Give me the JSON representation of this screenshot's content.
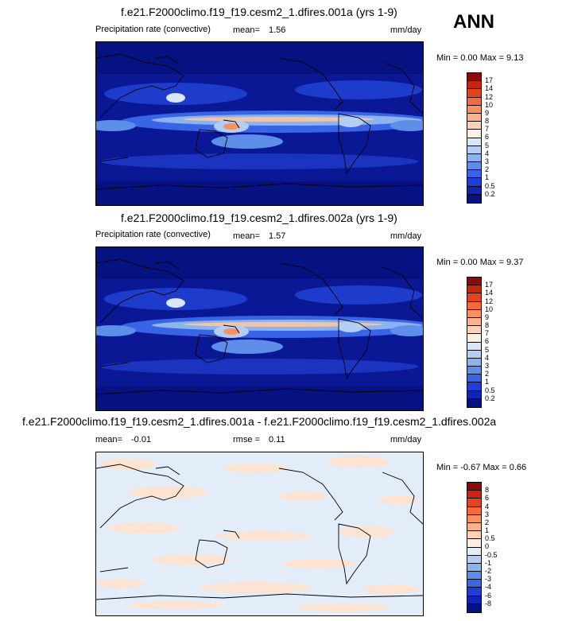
{
  "season": "ANN",
  "panels": [
    {
      "title": "f.e21.F2000climo.f19_f19.cesm2_1.dfires.001a (yrs 1-9)",
      "variable": "Precipitation rate (convective)",
      "stat_label": "mean=",
      "stat_value": "1.56",
      "units": "mm/day",
      "minmax": "Min =   0.00 Max =   9.13",
      "colorbar_labels": [
        "17",
        "14",
        "12",
        "10",
        "9",
        "8",
        "7",
        "6",
        "5",
        "4",
        "3",
        "2",
        "1",
        "0.5",
        "0.2"
      ],
      "colorbar_colors": [
        "#8b0a0a",
        "#c8250e",
        "#e4431f",
        "#f46a3c",
        "#f8915f",
        "#f9b289",
        "#fcd2b6",
        "#fdeee3",
        "#d9e6f8",
        "#b4cdf2",
        "#8db3ee",
        "#5d8fea",
        "#3a64e6",
        "#1f3ed6",
        "#0f23b4",
        "#051182"
      ]
    },
    {
      "title": "f.e21.F2000climo.f19_f19.cesm2_1.dfires.002a (yrs 1-9)",
      "variable": "Precipitation rate (convective)",
      "stat_label": "mean=",
      "stat_value": "1.57",
      "units": "mm/day",
      "minmax": "Min =   0.00 Max =   9.37",
      "colorbar_labels": [
        "17",
        "14",
        "12",
        "10",
        "9",
        "8",
        "7",
        "6",
        "5",
        "4",
        "3",
        "2",
        "1",
        "0.5",
        "0.2"
      ],
      "colorbar_colors": [
        "#8b0a0a",
        "#c8250e",
        "#e4431f",
        "#f46a3c",
        "#f8915f",
        "#f9b289",
        "#fcd2b6",
        "#fdeee3",
        "#d9e6f8",
        "#b4cdf2",
        "#8db3ee",
        "#5d8fea",
        "#3a64e6",
        "#1f3ed6",
        "#0f23b4",
        "#051182"
      ]
    },
    {
      "title": "f.e21.F2000climo.f19_f19.cesm2_1.dfires.001a - f.e21.F2000climo.f19_f19.cesm2_1.dfires.002a",
      "stat_label": "mean=",
      "stat_value": "-0.01",
      "rmse_label": "rmse =",
      "rmse_value": "0.11",
      "units": "mm/day",
      "minmax": "Min =  -0.67 Max =   0.66",
      "colorbar_labels": [
        "8",
        "6",
        "4",
        "3",
        "2",
        "1",
        "0.5",
        "0",
        "-0.5",
        "-1",
        "-2",
        "-3",
        "-4",
        "-6",
        "-8"
      ],
      "colorbar_colors": [
        "#8b0a0a",
        "#c8250e",
        "#e4431f",
        "#f46a3c",
        "#f8915f",
        "#f9b289",
        "#fcd2b6",
        "#fdeee3",
        "#e3edfa",
        "#b4cdf2",
        "#8db3ee",
        "#5d8fea",
        "#3a64e6",
        "#1f3ed6",
        "#0f23b4",
        "#051182"
      ]
    }
  ]
}
